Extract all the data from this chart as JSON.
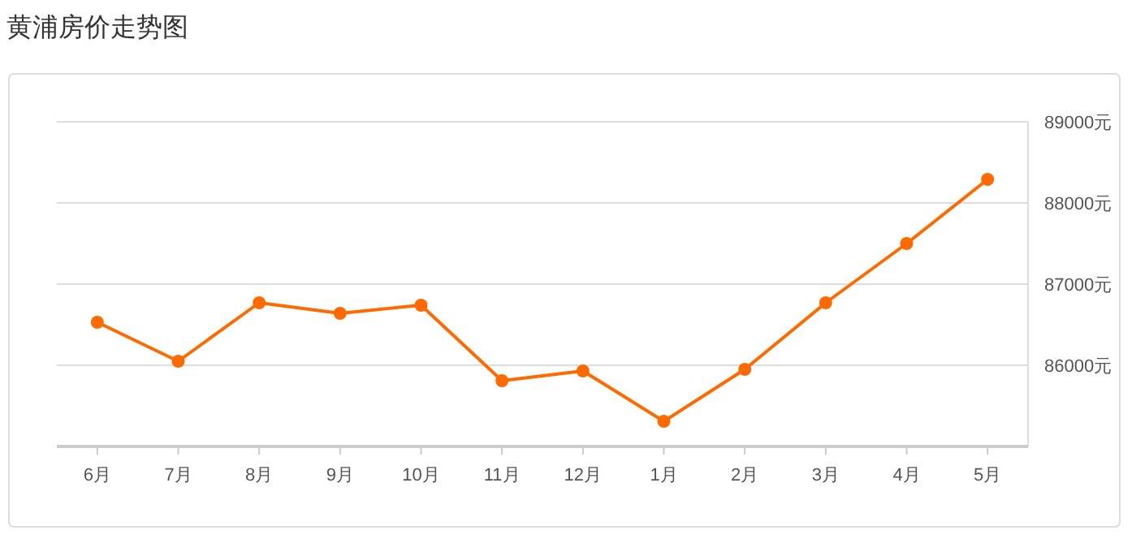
{
  "chart_data": {
    "type": "line",
    "title": "黄浦房价走势图",
    "categories": [
      "6月",
      "7月",
      "8月",
      "9月",
      "10月",
      "11月",
      "12月",
      "1月",
      "2月",
      "3月",
      "4月",
      "5月"
    ],
    "series": [
      {
        "color": "#ff6a00",
        "values": [
          86530,
          86050,
          86770,
          86640,
          86740,
          85810,
          85930,
          85310,
          85950,
          86770,
          87500,
          88290
        ]
      }
    ],
    "ylim": [
      85000,
      89000
    ],
    "yticks": [
      {
        "value": 85000,
        "label": null
      },
      {
        "value": 86000,
        "label": "86000元"
      },
      {
        "value": 87000,
        "label": "87000元"
      },
      {
        "value": 88000,
        "label": "88000元"
      },
      {
        "value": 89000,
        "label": "89000元"
      }
    ],
    "grid": "y",
    "marker": "circle",
    "line_style": "solid"
  }
}
